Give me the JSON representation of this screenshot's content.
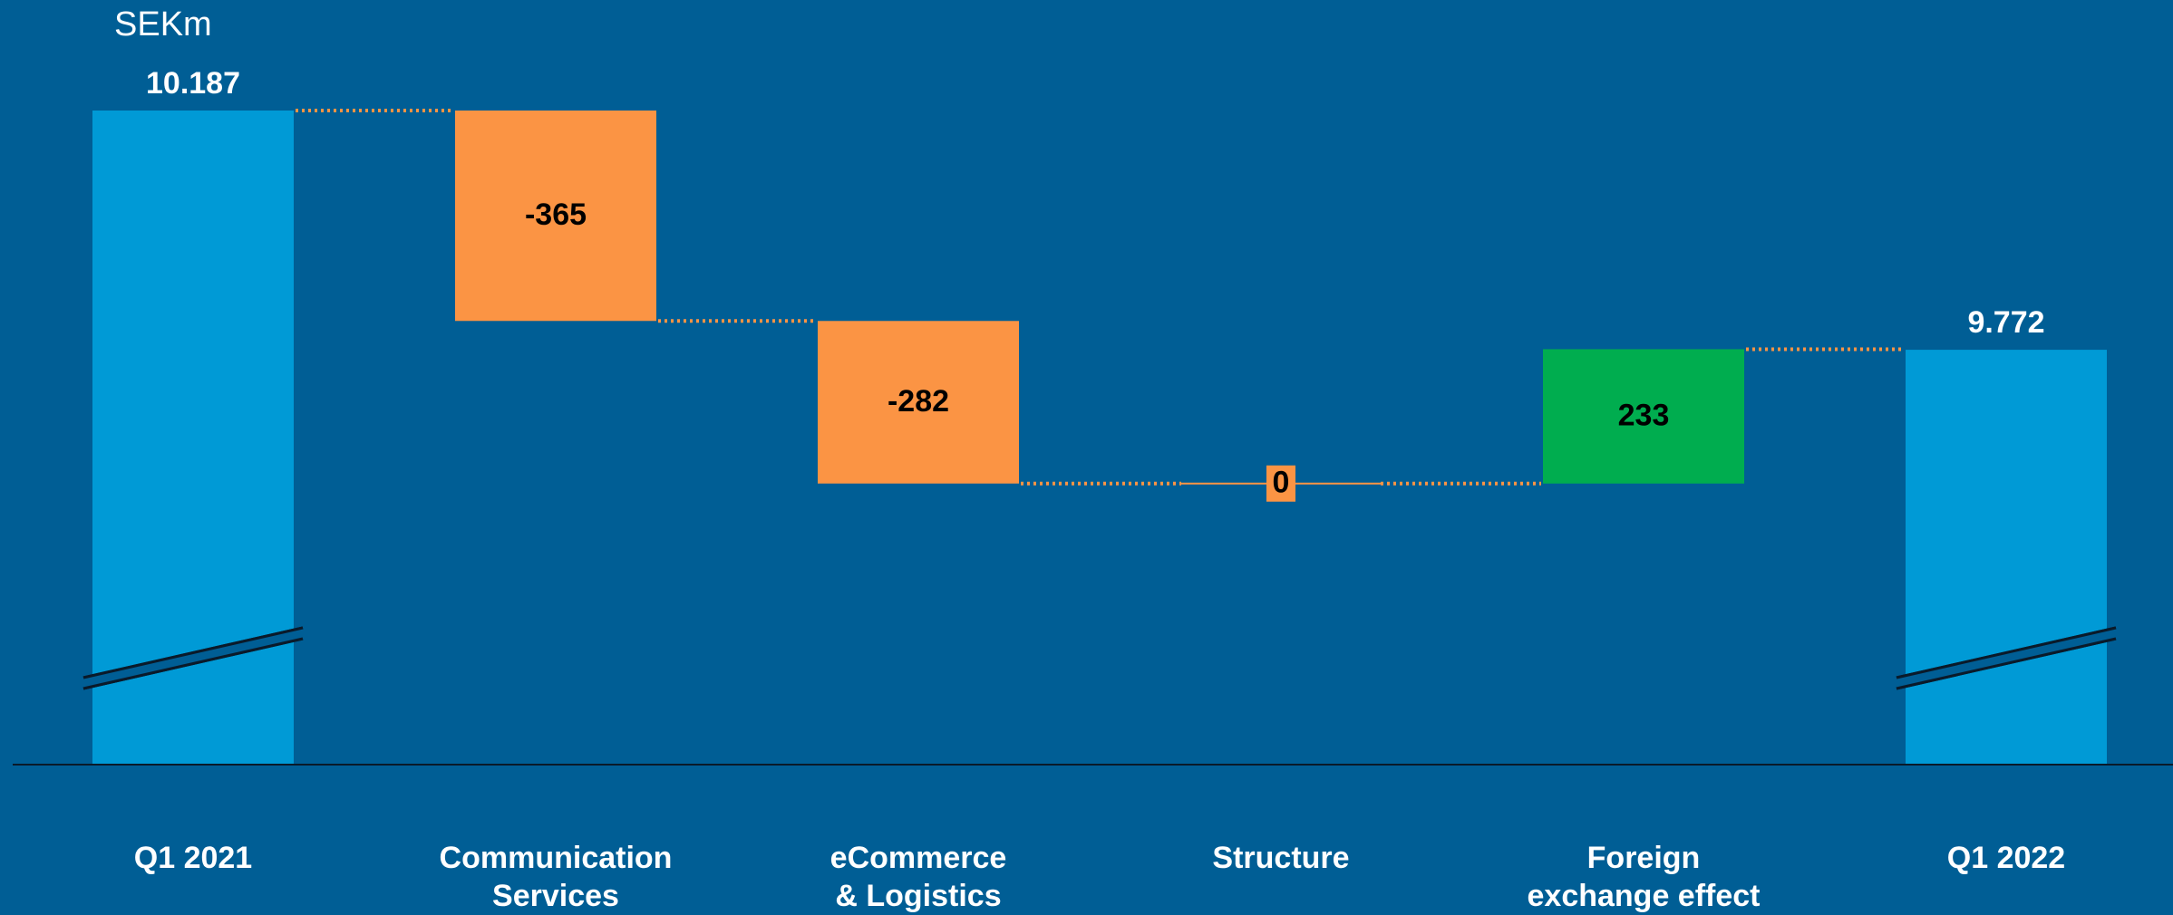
{
  "unit": "SEKm",
  "colors": {
    "background": "#005e95",
    "total": "#009ad6",
    "decrease": "#fb9444",
    "increase": "#00ad4f",
    "connector": "#fb9444",
    "axis": "#0a1a2a",
    "label_light": "#ffffff",
    "label_dark": "#000000"
  },
  "chart_data": {
    "type": "bar",
    "subtype": "waterfall",
    "unit": "SEKm",
    "axis_break": true,
    "categories": [
      "Q1 2021",
      "Communication\nServices",
      "eCommerce\n& Logistics",
      "Structure",
      "Foreign\nexchange effect",
      "Q1 2022"
    ],
    "values": [
      10187,
      -365,
      -282,
      0,
      233,
      9772
    ],
    "kinds": [
      "total",
      "delta",
      "delta",
      "delta",
      "delta",
      "total"
    ],
    "value_labels": [
      "10.187",
      "-365",
      "-282",
      "0",
      "233",
      "9.772"
    ]
  }
}
